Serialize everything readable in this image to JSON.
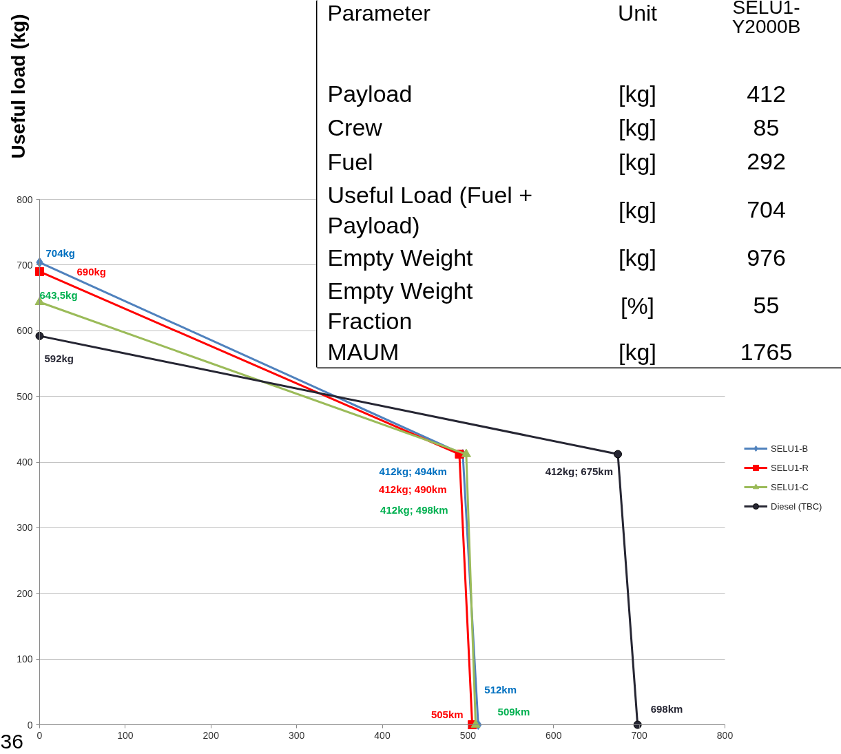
{
  "chart_data": {
    "type": "line",
    "ylabel": "Useful load (kg)",
    "xlim": [
      0,
      800
    ],
    "ylim": [
      0,
      800
    ],
    "xticks": [
      0,
      100,
      200,
      300,
      400,
      500,
      600,
      700,
      800
    ],
    "yticks": [
      0,
      100,
      200,
      300,
      400,
      500,
      600,
      700,
      800
    ],
    "grid": "y",
    "legend": "right",
    "series": [
      {
        "name": "SELU1-B",
        "color": "#4f81bd",
        "marker": "diamond",
        "x": [
          0,
          494,
          512
        ],
        "values": [
          704,
          412,
          0
        ]
      },
      {
        "name": "SELU1-R",
        "color": "#ff0000",
        "marker": "square",
        "x": [
          0,
          490,
          505
        ],
        "values": [
          690,
          412,
          0
        ]
      },
      {
        "name": "SELU1-C",
        "color": "#9bbb59",
        "marker": "triangle",
        "x": [
          0,
          498,
          509
        ],
        "values": [
          643.5,
          412,
          0
        ]
      },
      {
        "name": "Diesel (TBC)",
        "color": "#262633",
        "marker": "circle",
        "x": [
          0,
          675,
          698
        ],
        "values": [
          592,
          412,
          0
        ]
      }
    ],
    "annotations": [
      {
        "text": "704kg",
        "x": 0,
        "y": 704
      },
      {
        "text": "643,5kg",
        "x": 0,
        "y": 643.5
      },
      {
        "text": "592kg",
        "x": 0,
        "y": 592
      },
      {
        "text": "412kg; 494km",
        "x": 494,
        "y": 412
      },
      {
        "text": "412kg; 675km",
        "x": 675,
        "y": 412
      },
      {
        "text": "512km",
        "x": 512,
        "y": 0
      },
      {
        "text": "505km",
        "x": 505,
        "y": 0
      },
      {
        "text": "509km",
        "x": 509,
        "y": 0
      },
      {
        "text": "698km",
        "x": 698,
        "y": 0
      },
      "690kg",
      "412kg; 490km",
      "412kg; 498km",
      "Parameter",
      "Unit",
      "SELU1-\nY2000B",
      "Payload",
      "[kg]",
      "412",
      "Crew",
      "[kg]",
      "85",
      "Fuel",
      "[kg]",
      "292",
      "Useful Load (Fuel +\nPayload)",
      "[kg]",
      "704",
      "Empty Weight",
      "[kg]",
      "976",
      "Empty Weight\nFraction",
      "[%]",
      "55",
      "MAUM",
      "[kg]",
      "1765",
      "36"
    ]
  }
}
